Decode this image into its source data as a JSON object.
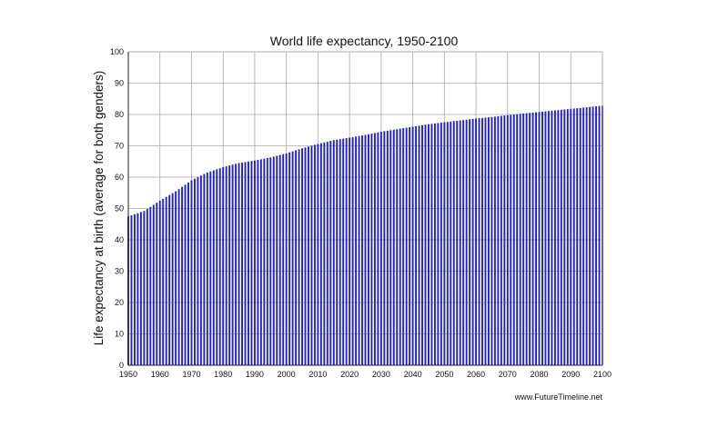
{
  "chart_data": {
    "type": "bar",
    "title": "World life expectancy, 1950-2100",
    "xlabel": "",
    "ylabel": "Life expectancy at birth (average for both genders)",
    "ylim": [
      0,
      100
    ],
    "xlim": [
      1950,
      2100
    ],
    "y_ticks": [
      "0",
      "10",
      "20",
      "30",
      "40",
      "50",
      "60",
      "70",
      "80",
      "90",
      "100"
    ],
    "x_ticks": [
      "1950",
      "1960",
      "1970",
      "1980",
      "1990",
      "2000",
      "2010",
      "2020",
      "2030",
      "2040",
      "2050",
      "2060",
      "2070",
      "2080",
      "2090",
      "2100"
    ],
    "grid": true,
    "bar_color": "#2222cc",
    "anchors": [
      [
        1950,
        47.5
      ],
      [
        1955,
        49.2
      ],
      [
        1957,
        50.5
      ],
      [
        1960,
        52.5
      ],
      [
        1965,
        55.5
      ],
      [
        1970,
        59.0
      ],
      [
        1975,
        61.5
      ],
      [
        1980,
        63.2
      ],
      [
        1985,
        64.5
      ],
      [
        1990,
        65.3
      ],
      [
        1995,
        66.3
      ],
      [
        2000,
        67.6
      ],
      [
        2005,
        69.2
      ],
      [
        2010,
        70.6
      ],
      [
        2015,
        71.8
      ],
      [
        2020,
        72.6
      ],
      [
        2025,
        73.5
      ],
      [
        2030,
        74.5
      ],
      [
        2035,
        75.3
      ],
      [
        2040,
        76.1
      ],
      [
        2045,
        76.9
      ],
      [
        2050,
        77.5
      ],
      [
        2055,
        78.1
      ],
      [
        2060,
        78.7
      ],
      [
        2065,
        79.2
      ],
      [
        2070,
        79.8
      ],
      [
        2075,
        80.3
      ],
      [
        2080,
        80.8
      ],
      [
        2085,
        81.3
      ],
      [
        2090,
        81.8
      ],
      [
        2095,
        82.3
      ],
      [
        2100,
        82.8
      ]
    ]
  },
  "credit": "www.FutureTimeline.net"
}
